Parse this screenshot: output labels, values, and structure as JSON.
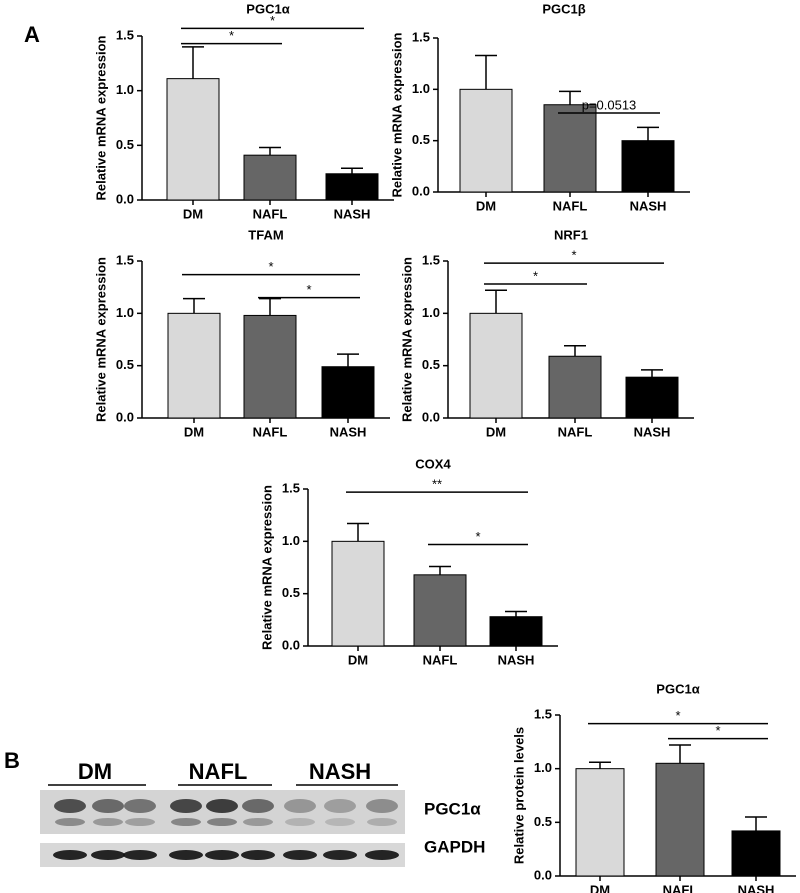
{
  "panels": [
    "A",
    "B"
  ],
  "blot": {
    "groups": [
      "DM",
      "NAFL",
      "NASH"
    ],
    "bands": [
      "PGC1α",
      "GAPDH"
    ]
  },
  "chart_data": [
    {
      "type": "bar",
      "title": "PGC1α",
      "ylabel": "Relative mRNA expression",
      "categories": [
        "DM",
        "NAFL",
        "NASH"
      ],
      "values": [
        1.11,
        0.41,
        0.24
      ],
      "errors": [
        0.29,
        0.07,
        0.05
      ],
      "colors": [
        "#d9d9d9",
        "#666666",
        "#000000"
      ],
      "ylim": [
        0,
        1.5
      ],
      "yticks": [
        {
          "value": 0,
          "label": "0.0"
        },
        {
          "value": 0.5,
          "label": "0.5"
        },
        {
          "value": 1,
          "label": "1.0"
        },
        {
          "value": 1.5,
          "label": "1.5"
        }
      ],
      "annotations": [
        {
          "label": "*",
          "span": [
            "DM",
            "NAFL"
          ]
        },
        {
          "label": "*",
          "span": [
            "DM",
            "NASH"
          ]
        }
      ]
    },
    {
      "type": "bar",
      "title": "PGC1β",
      "ylabel": "Relative mRNA expression",
      "categories": [
        "DM",
        "NAFL",
        "NASH"
      ],
      "values": [
        1.0,
        0.85,
        0.5
      ],
      "errors": [
        0.33,
        0.13,
        0.13
      ],
      "colors": [
        "#d9d9d9",
        "#666666",
        "#000000"
      ],
      "ylim": [
        0,
        1.5
      ],
      "yticks": [
        {
          "value": 0,
          "label": "0.0"
        },
        {
          "value": 0.5,
          "label": "0.5"
        },
        {
          "value": 1,
          "label": "1.0"
        },
        {
          "value": 1.5,
          "label": "1.5"
        }
      ],
      "annotations": [
        {
          "label": "p=0.0513",
          "span": [
            "NAFL",
            "NASH"
          ]
        }
      ]
    },
    {
      "type": "bar",
      "title": "TFAM",
      "ylabel": "Relative mRNA expression",
      "categories": [
        "DM",
        "NAFL",
        "NASH"
      ],
      "values": [
        1.0,
        0.98,
        0.49
      ],
      "errors": [
        0.14,
        0.16,
        0.12
      ],
      "colors": [
        "#d9d9d9",
        "#666666",
        "#000000"
      ],
      "ylim": [
        0,
        1.5
      ],
      "yticks": [
        {
          "value": 0,
          "label": "0.0"
        },
        {
          "value": 0.5,
          "label": "0.5"
        },
        {
          "value": 1,
          "label": "1.0"
        },
        {
          "value": 1.5,
          "label": "1.5"
        }
      ],
      "annotations": [
        {
          "label": "*",
          "span": [
            "DM",
            "NASH"
          ]
        },
        {
          "label": "*",
          "span": [
            "NAFL",
            "NASH"
          ]
        }
      ]
    },
    {
      "type": "bar",
      "title": "NRF1",
      "ylabel": "Relative mRNA expression",
      "categories": [
        "DM",
        "NAFL",
        "NASH"
      ],
      "values": [
        1.0,
        0.59,
        0.39
      ],
      "errors": [
        0.22,
        0.1,
        0.07
      ],
      "colors": [
        "#d9d9d9",
        "#666666",
        "#000000"
      ],
      "ylim": [
        0,
        1.5
      ],
      "yticks": [
        {
          "value": 0,
          "label": "0.0"
        },
        {
          "value": 0.5,
          "label": "0.5"
        },
        {
          "value": 1,
          "label": "1.0"
        },
        {
          "value": 1.5,
          "label": "1.5"
        }
      ],
      "annotations": [
        {
          "label": "*",
          "span": [
            "DM",
            "NAFL"
          ]
        },
        {
          "label": "*",
          "span": [
            "DM",
            "NASH"
          ]
        }
      ]
    },
    {
      "type": "bar",
      "title": "COX4",
      "ylabel": "Relative mRNA expression",
      "categories": [
        "DM",
        "NAFL",
        "NASH"
      ],
      "values": [
        1.0,
        0.68,
        0.28
      ],
      "errors": [
        0.17,
        0.08,
        0.05
      ],
      "colors": [
        "#d9d9d9",
        "#666666",
        "#000000"
      ],
      "ylim": [
        0,
        1.5
      ],
      "yticks": [
        {
          "value": 0,
          "label": "0.0"
        },
        {
          "value": 0.5,
          "label": "0.5"
        },
        {
          "value": 1,
          "label": "1.0"
        },
        {
          "value": 1.5,
          "label": "1.5"
        }
      ],
      "annotations": [
        {
          "label": "**",
          "span": [
            "DM",
            "NASH"
          ]
        },
        {
          "label": "*",
          "span": [
            "NAFL",
            "NASH"
          ]
        }
      ]
    },
    {
      "type": "bar",
      "title": "PGC1α",
      "ylabel": "Relative protein levels",
      "categories": [
        "DM",
        "NAFL",
        "NASH"
      ],
      "values": [
        1.0,
        1.05,
        0.42
      ],
      "errors": [
        0.06,
        0.17,
        0.13
      ],
      "colors": [
        "#d9d9d9",
        "#666666",
        "#000000"
      ],
      "ylim": [
        0,
        1.5
      ],
      "yticks": [
        {
          "value": 0,
          "label": "0.0"
        },
        {
          "value": 0.5,
          "label": "0.5"
        },
        {
          "value": 1,
          "label": "1.0"
        },
        {
          "value": 1.5,
          "label": "1.5"
        }
      ],
      "annotations": [
        {
          "label": "*",
          "span": [
            "DM",
            "NASH"
          ]
        },
        {
          "label": "*",
          "span": [
            "NAFL",
            "NASH"
          ]
        }
      ]
    }
  ]
}
